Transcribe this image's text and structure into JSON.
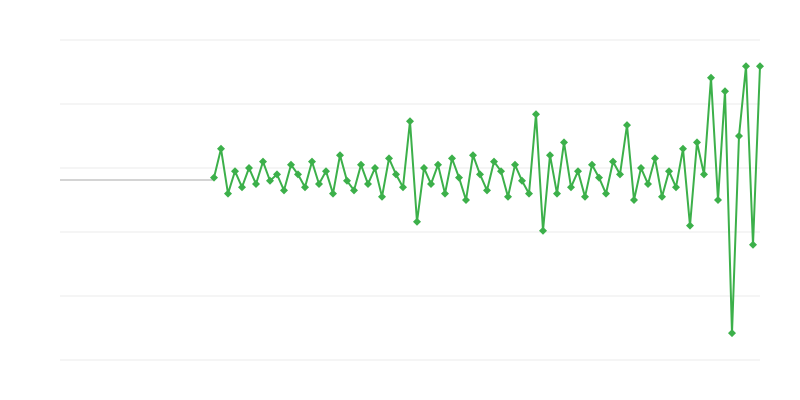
{
  "chart_data": {
    "type": "line",
    "xlim": [
      0,
      200
    ],
    "ylim": [
      0,
      5
    ],
    "yticks": [
      0,
      1,
      2,
      3,
      4,
      5
    ],
    "grid": true,
    "series": [
      {
        "color": "#aaaaaa",
        "markers": false,
        "x": [
          0,
          44
        ],
        "values": [
          2.8125,
          2.8125
        ]
      },
      {
        "color": "#3cb04a",
        "markers": true,
        "x": [
          44,
          46,
          48,
          50,
          52,
          54,
          56,
          58,
          60,
          62,
          64,
          66,
          68,
          70,
          72,
          74,
          76,
          78,
          80,
          82,
          84,
          86,
          88,
          90,
          92,
          94,
          96,
          98,
          100,
          102,
          104,
          106,
          108,
          110,
          112,
          114,
          116,
          118,
          120,
          122,
          124,
          126,
          128,
          130,
          132,
          134,
          136,
          138,
          140,
          142,
          144,
          146,
          148,
          150,
          152,
          154,
          156,
          158,
          160,
          162,
          164,
          166,
          168,
          170,
          172,
          174,
          176,
          178,
          180,
          182,
          184,
          186,
          188,
          190,
          192,
          194,
          196,
          198,
          200
        ],
        "values": [
          2.85,
          3.3,
          2.6,
          2.95,
          2.7,
          3.0,
          2.75,
          3.1,
          2.8,
          2.9,
          2.65,
          3.05,
          2.9,
          2.7,
          3.1,
          2.75,
          2.95,
          2.6,
          3.2,
          2.8,
          2.65,
          3.05,
          2.75,
          3.0,
          2.55,
          3.15,
          2.9,
          2.7,
          3.73,
          2.16,
          3.0,
          2.75,
          3.05,
          2.6,
          3.15,
          2.85,
          2.5,
          3.2,
          2.9,
          2.65,
          3.1,
          2.95,
          2.55,
          3.05,
          2.8,
          2.6,
          3.84,
          2.02,
          3.2,
          2.6,
          3.4,
          2.7,
          2.95,
          2.55,
          3.05,
          2.85,
          2.6,
          3.1,
          2.9,
          3.67,
          2.5,
          3.0,
          2.75,
          3.15,
          2.55,
          2.95,
          2.7,
          3.3,
          2.1,
          3.4,
          2.9,
          4.41,
          2.5,
          4.2,
          0.42,
          3.5,
          4.59,
          1.8,
          4.59
        ]
      }
    ]
  }
}
